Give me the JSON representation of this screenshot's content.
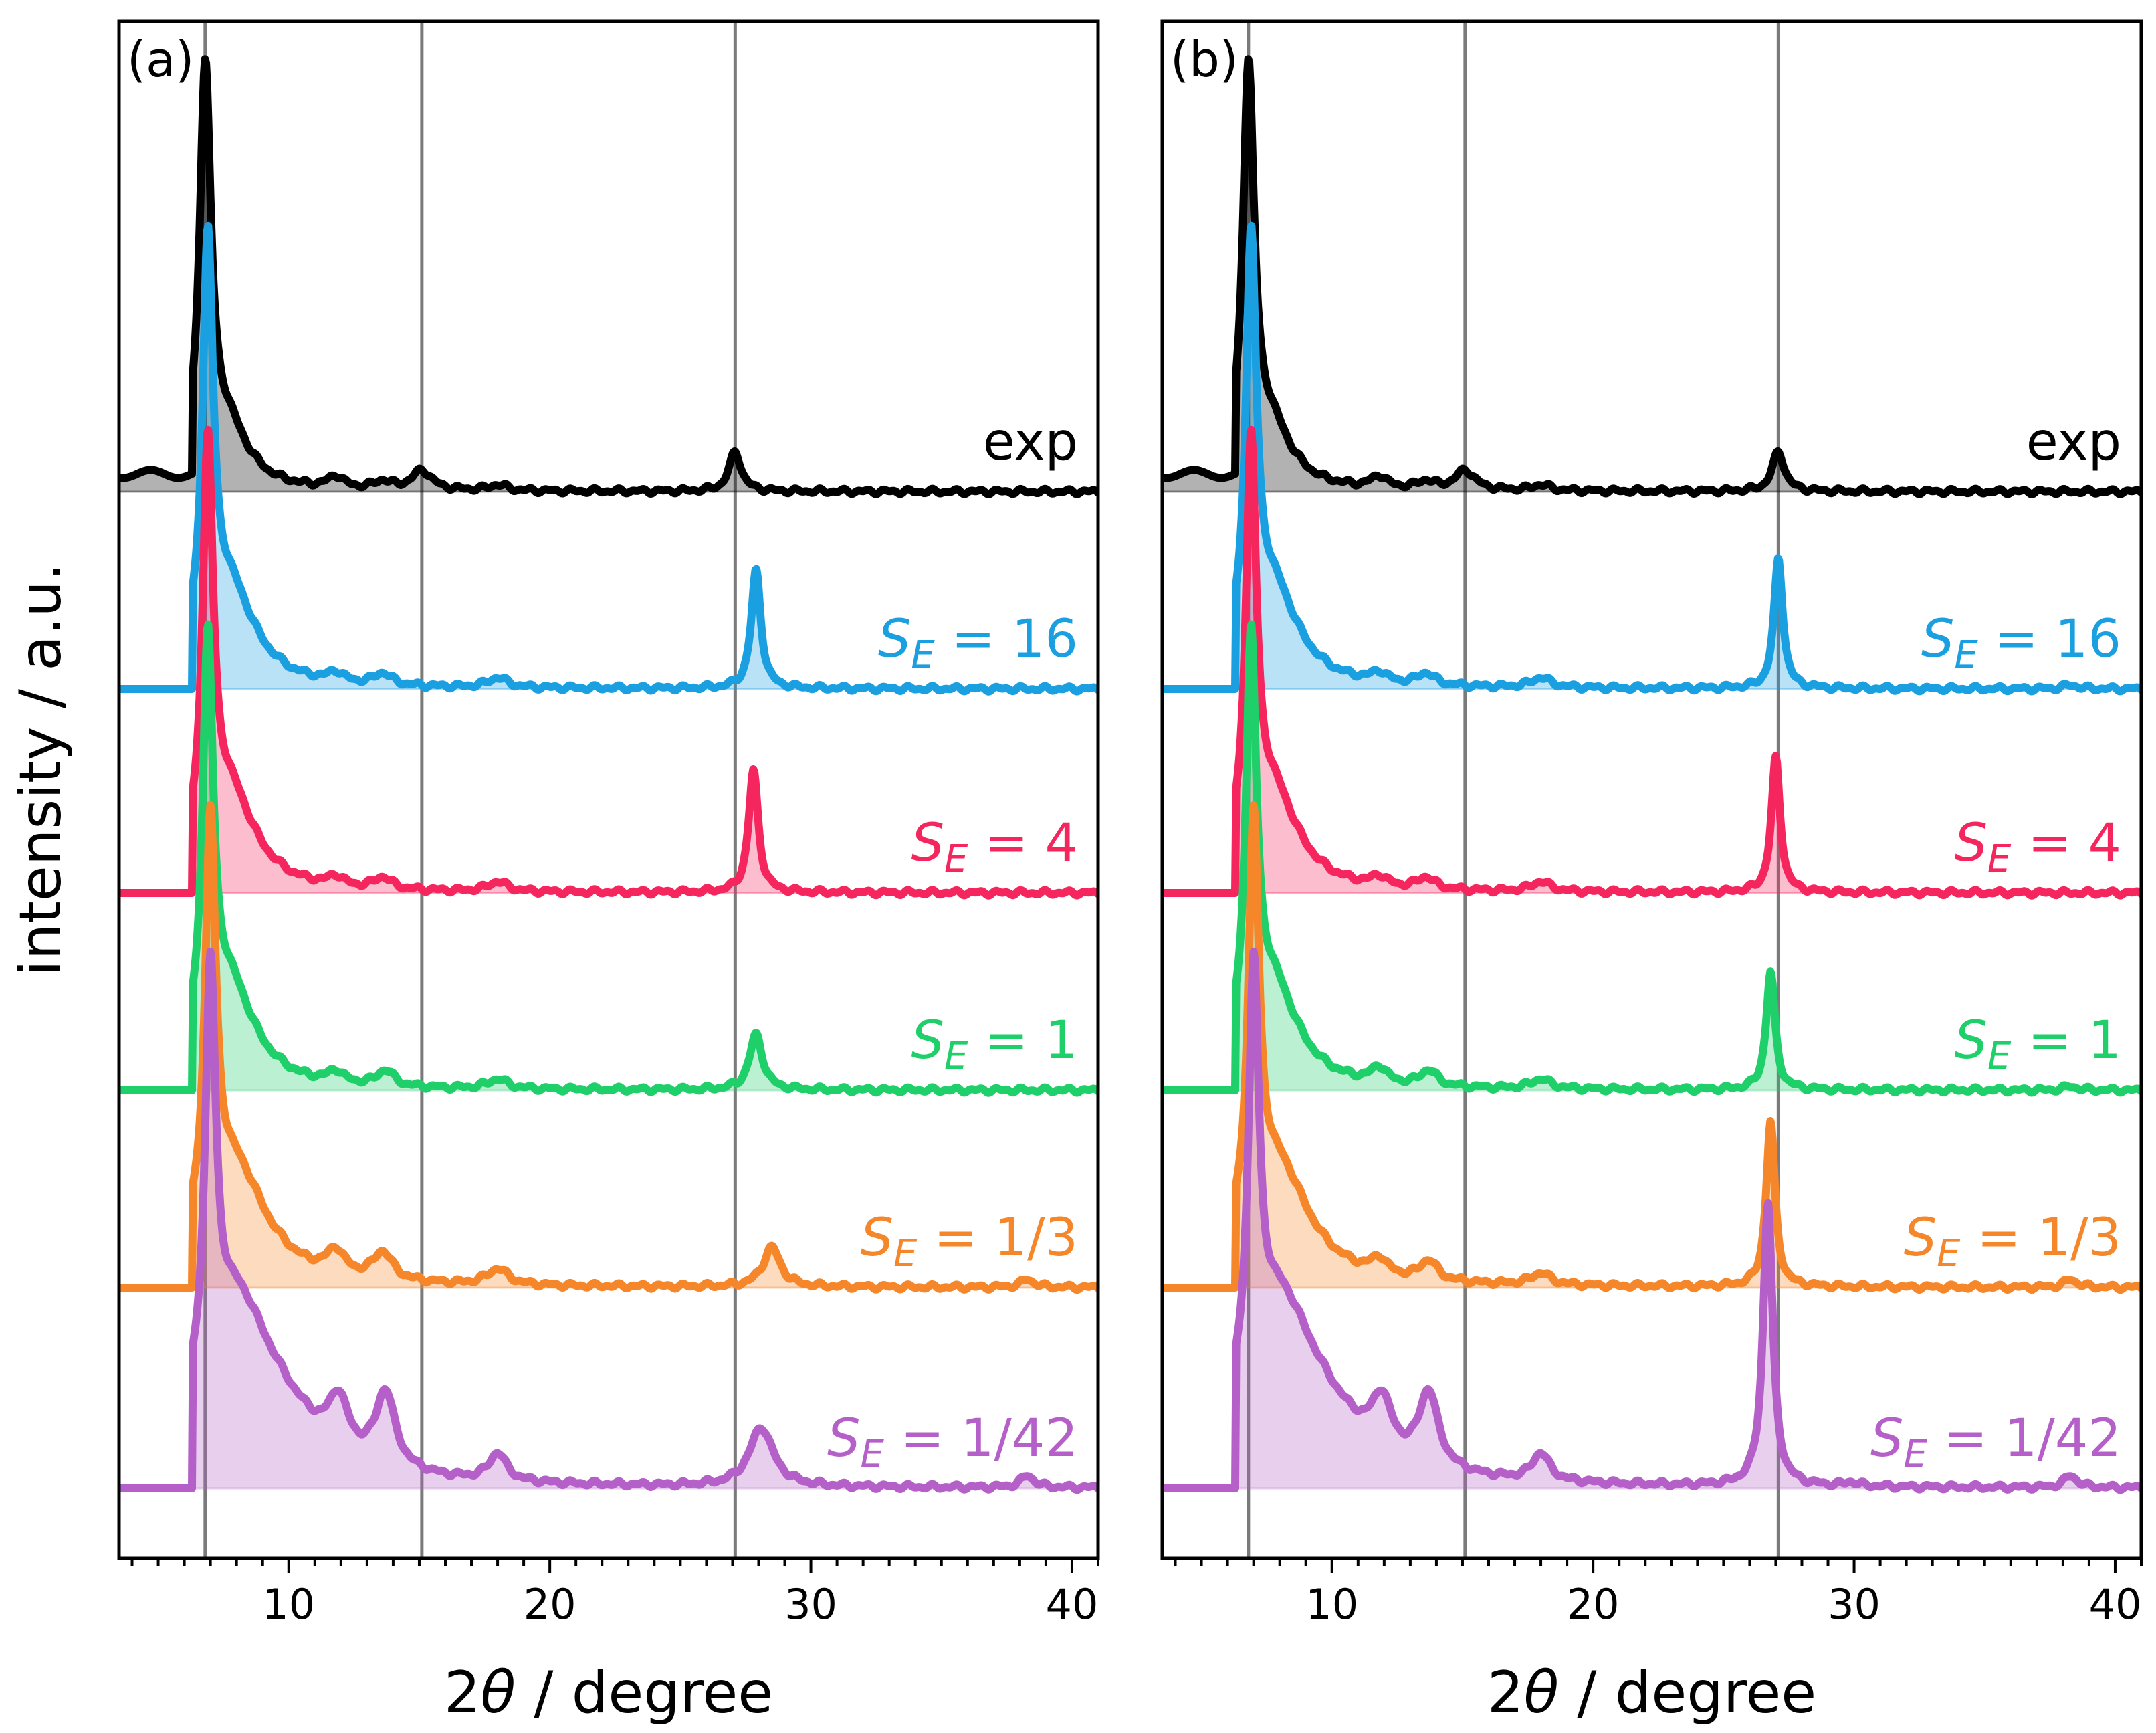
{
  "chart_data": {
    "type": "line",
    "ylabel": "intensity / a.u.",
    "xlabel_symbol": "θ",
    "xlabel": "2θ / degree",
    "xlim": [
      3.5,
      41
    ],
    "xticks": [
      10,
      20,
      30,
      40
    ],
    "xtick_labels": [
      "10",
      "20",
      "30",
      "40"
    ],
    "reference_lines_x": [
      6.8,
      15.1,
      27.1
    ],
    "yticks_shown": false,
    "panels": [
      {
        "label": "(a)",
        "series": [
          {
            "name": "exp",
            "label_base": "exp",
            "label_sub": "",
            "label_value": "",
            "color": "#000000",
            "peaks": [
              [
                6.8,
                1.0,
                0.26
              ],
              [
                7.6,
                0.16,
                1.0
              ],
              [
                11.8,
                0.03,
                0.35
              ],
              [
                13.6,
                0.02,
                0.4
              ],
              [
                15.1,
                0.05,
                0.45
              ],
              [
                18.0,
                0.015,
                0.4
              ],
              [
                27.1,
                0.1,
                0.28
              ]
            ]
          },
          {
            "name": "S_E = 16",
            "label_base": "S",
            "label_sub": "E",
            "label_value": " = 16",
            "color": "#1a9fe0",
            "peaks": [
              [
                6.9,
                1.0,
                0.24
              ],
              [
                7.7,
                0.25,
                1.2
              ],
              [
                11.8,
                0.025,
                0.35
              ],
              [
                13.6,
                0.03,
                0.4
              ],
              [
                18.0,
                0.025,
                0.45
              ],
              [
                27.9,
                0.3,
                0.22
              ]
            ]
          },
          {
            "name": "S_E = 4",
            "label_base": "S",
            "label_sub": "E",
            "label_value": " = 4",
            "color": "#f5265d",
            "peaks": [
              [
                6.9,
                1.0,
                0.24
              ],
              [
                7.7,
                0.25,
                1.2
              ],
              [
                11.8,
                0.025,
                0.35
              ],
              [
                13.6,
                0.03,
                0.4
              ],
              [
                18.0,
                0.025,
                0.45
              ],
              [
                27.8,
                0.31,
                0.22
              ]
            ]
          },
          {
            "name": "S_E = 1",
            "label_base": "S",
            "label_sub": "E",
            "label_value": " = 1",
            "color": "#1ecf6a",
            "peaks": [
              [
                6.9,
                1.0,
                0.24
              ],
              [
                7.7,
                0.26,
                1.2
              ],
              [
                11.8,
                0.03,
                0.35
              ],
              [
                13.7,
                0.04,
                0.4
              ],
              [
                18.0,
                0.025,
                0.45
              ],
              [
                27.9,
                0.14,
                0.3
              ]
            ]
          },
          {
            "name": "S_E = 1/3",
            "label_base": "S",
            "label_sub": "E",
            "label_value": " = 1/3",
            "color": "#f5872a",
            "peaks": [
              [
                7.0,
                1.0,
                0.24
              ],
              [
                7.9,
                0.3,
                1.5
              ],
              [
                11.8,
                0.06,
                0.4
              ],
              [
                13.6,
                0.07,
                0.45
              ],
              [
                18.0,
                0.04,
                0.5
              ],
              [
                28.5,
                0.1,
                0.4
              ],
              [
                38.3,
                0.02,
                0.3
              ]
            ]
          },
          {
            "name": "S_E = 1/42",
            "label_base": "S",
            "label_sub": "E",
            "label_value": " = 1/42",
            "color": "#b460c8",
            "peaks": [
              [
                7.0,
                1.0,
                0.24
              ],
              [
                7.9,
                0.4,
                1.6
              ],
              [
                9.5,
                0.12,
                2.2
              ],
              [
                11.9,
                0.13,
                0.45
              ],
              [
                13.7,
                0.19,
                0.45
              ],
              [
                18.0,
                0.07,
                0.4
              ],
              [
                28.1,
                0.15,
                0.55
              ],
              [
                38.3,
                0.03,
                0.3
              ]
            ]
          }
        ]
      },
      {
        "label": "(b)",
        "series": [
          {
            "name": "exp",
            "label_base": "exp",
            "label_sub": "",
            "label_value": "",
            "color": "#000000",
            "peaks": [
              [
                6.8,
                1.0,
                0.26
              ],
              [
                7.6,
                0.16,
                1.0
              ],
              [
                11.8,
                0.03,
                0.35
              ],
              [
                13.6,
                0.02,
                0.4
              ],
              [
                15.1,
                0.05,
                0.45
              ],
              [
                18.0,
                0.015,
                0.4
              ],
              [
                27.1,
                0.1,
                0.28
              ]
            ]
          },
          {
            "name": "S_E = 16",
            "label_base": "S",
            "label_sub": "E",
            "label_value": " = 16",
            "color": "#1a9fe0",
            "peaks": [
              [
                6.9,
                1.0,
                0.24
              ],
              [
                7.7,
                0.25,
                1.2
              ],
              [
                11.8,
                0.025,
                0.35
              ],
              [
                13.6,
                0.03,
                0.4
              ],
              [
                18.0,
                0.025,
                0.45
              ],
              [
                27.1,
                0.33,
                0.2
              ],
              [
                38.3,
                0.01,
                0.3
              ]
            ]
          },
          {
            "name": "S_E = 4",
            "label_base": "S",
            "label_sub": "E",
            "label_value": " = 4",
            "color": "#f5265d",
            "peaks": [
              [
                6.9,
                1.0,
                0.24
              ],
              [
                7.7,
                0.25,
                1.2
              ],
              [
                11.8,
                0.025,
                0.35
              ],
              [
                13.6,
                0.03,
                0.4
              ],
              [
                18.0,
                0.025,
                0.45
              ],
              [
                27.0,
                0.34,
                0.2
              ]
            ]
          },
          {
            "name": "S_E = 1",
            "label_base": "S",
            "label_sub": "E",
            "label_value": " = 1",
            "color": "#1ecf6a",
            "peaks": [
              [
                6.9,
                1.0,
                0.24
              ],
              [
                7.7,
                0.26,
                1.2
              ],
              [
                11.8,
                0.04,
                0.35
              ],
              [
                13.7,
                0.04,
                0.4
              ],
              [
                18.0,
                0.025,
                0.45
              ],
              [
                26.8,
                0.3,
                0.2
              ],
              [
                38.3,
                0.01,
                0.3
              ]
            ]
          },
          {
            "name": "S_E = 1/3",
            "label_base": "S",
            "label_sub": "E",
            "label_value": " = 1/3",
            "color": "#f5872a",
            "peaks": [
              [
                7.0,
                1.0,
                0.24
              ],
              [
                7.9,
                0.3,
                1.5
              ],
              [
                11.8,
                0.04,
                0.35
              ],
              [
                13.7,
                0.05,
                0.4
              ],
              [
                18.0,
                0.03,
                0.45
              ],
              [
                26.8,
                0.42,
                0.2
              ],
              [
                38.3,
                0.02,
                0.3
              ]
            ]
          },
          {
            "name": "S_E = 1/42",
            "label_base": "S",
            "label_sub": "E",
            "label_value": " = 1/42",
            "color": "#b460c8",
            "peaks": [
              [
                7.0,
                1.0,
                0.24
              ],
              [
                7.9,
                0.4,
                1.6
              ],
              [
                9.5,
                0.12,
                2.2
              ],
              [
                11.9,
                0.13,
                0.45
              ],
              [
                13.7,
                0.19,
                0.45
              ],
              [
                18.0,
                0.07,
                0.4
              ],
              [
                26.7,
                0.72,
                0.22
              ],
              [
                29.9,
                0.01,
                0.3
              ],
              [
                38.3,
                0.03,
                0.3
              ]
            ]
          }
        ]
      }
    ]
  }
}
